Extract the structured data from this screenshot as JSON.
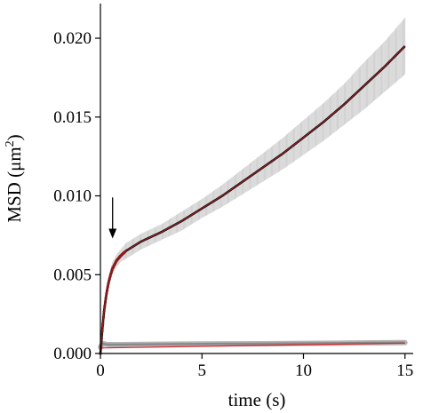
{
  "chart_data": {
    "type": "line",
    "xlabel": "time (s)",
    "ylabel": {
      "prefix": "MSD (μm",
      "superscript": "2",
      "suffix": ")"
    },
    "xlim": [
      0,
      15.8
    ],
    "ylim": [
      0,
      0.0222
    ],
    "x_ticks": [
      0,
      5,
      10,
      15
    ],
    "x_tick_labels": [
      "0",
      "5",
      "10",
      "15"
    ],
    "y_ticks": [
      0,
      0.005,
      0.01,
      0.015,
      0.02
    ],
    "y_tick_labels": [
      "0.000",
      "0.005",
      "0.010",
      "0.015",
      "0.020"
    ],
    "grid": false,
    "legend": "none",
    "colors": {
      "mean": "#111111",
      "fit": "#d8232a",
      "error_band": "#c8c8c8",
      "control": "#8a8a8a",
      "early_points": "#8b1a1a"
    },
    "series": [
      {
        "x": [
          0,
          0.05,
          0.1,
          0.15,
          0.2,
          0.3,
          0.4,
          0.5,
          0.6,
          0.8,
          1.0,
          1.25,
          1.5,
          2,
          2.5,
          3,
          4,
          5,
          6,
          7,
          8,
          9,
          10,
          11,
          12,
          13,
          14,
          15
        ],
        "y": [
          0.0,
          0.0008,
          0.0016,
          0.0023,
          0.0029,
          0.0038,
          0.0045,
          0.005,
          0.0054,
          0.0059,
          0.0062,
          0.0065,
          0.0067,
          0.0071,
          0.0074,
          0.0077,
          0.0084,
          0.0092,
          0.01,
          0.0109,
          0.0118,
          0.0127,
          0.0137,
          0.0147,
          0.0158,
          0.017,
          0.0182,
          0.0195
        ],
        "error": [
          0.0,
          0.0001,
          0.0001,
          0.0002,
          0.0002,
          0.0003,
          0.0003,
          0.0004,
          0.0004,
          0.0004,
          0.0004,
          0.0005,
          0.0005,
          0.0005,
          0.0005,
          0.0005,
          0.0006,
          0.0006,
          0.0007,
          0.0008,
          0.0009,
          0.001,
          0.0011,
          0.0012,
          0.0013,
          0.0015,
          0.0016,
          0.0018
        ]
      },
      {
        "x": [
          0,
          15
        ],
        "y": [
          0.00035,
          0.00066
        ]
      },
      {
        "x": [
          0,
          0.1,
          0.2,
          0.4,
          1,
          2,
          4,
          6,
          8,
          10,
          12,
          14,
          15
        ],
        "y": [
          0.0004,
          0.00063,
          0.0006,
          0.00056,
          0.00056,
          0.00058,
          0.0006,
          0.00061,
          0.00062,
          0.00064,
          0.00066,
          0.00068,
          0.00069
        ]
      }
    ],
    "annotations": [
      {
        "type": "arrow",
        "at_x": 0.6,
        "tail_y": 0.0099,
        "head_y": 0.0073
      }
    ]
  }
}
